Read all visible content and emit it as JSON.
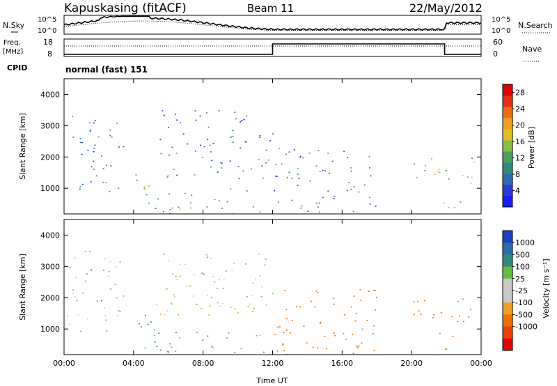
{
  "header": {
    "station": "Kapuskasing (fitACF)",
    "beam": "Beam 11",
    "date": "22/May/2012"
  },
  "noise_panel": {
    "left_label": "N.Sky",
    "right_label": "N.Search",
    "tick_top": "10^5",
    "tick_bottom": "10^0"
  },
  "freq_panel": {
    "left_label_1": "Freq.",
    "left_label_2": "[MHz]",
    "left_tick_top": "18",
    "left_tick_bottom": "8",
    "right_tick_top": "60",
    "right_tick_bottom": "0",
    "right_label": "Nave"
  },
  "cpid": {
    "label": "CPID",
    "value": "normal (fast) 151"
  },
  "colors": {
    "power_scale": [
      "#1a1aff",
      "#2a3ad8",
      "#2a6cb0",
      "#2e8c7a",
      "#4aa060",
      "#88c040",
      "#e0c020",
      "#f0a020",
      "#f06a10",
      "#e83010",
      "#e00000"
    ],
    "velocity_scale": [
      "#e80000",
      "#f04000",
      "#f07000",
      "#f0a020",
      "#c8c8c8",
      "#c8c8c8",
      "#60c040",
      "#2e8c7a",
      "#2a6cb0",
      "#1a40c8"
    ]
  },
  "chart_data": [
    {
      "type": "heatmap",
      "name": "power",
      "x_axis": {
        "label": "",
        "range_hours": [
          0,
          24
        ],
        "ticks": [
          "00:00",
          "04:00",
          "08:00",
          "12:00",
          "16:00",
          "20:00",
          "00:00"
        ]
      },
      "y_axis": {
        "label": "Slant Range [km]",
        "range": [
          180,
          4500
        ],
        "ticks": [
          1000,
          2000,
          3000,
          4000
        ]
      },
      "colorbar": {
        "label": "Power [dB]",
        "ticks": [
          "4",
          "8",
          "12",
          "16",
          "20",
          "24",
          "28"
        ],
        "range": [
          0,
          30
        ]
      },
      "echo_regions": [
        {
          "t0": 0.0,
          "t1": 3.2,
          "r0": 900,
          "r1": 1500,
          "level": 8
        },
        {
          "t0": 0.3,
          "t1": 3.5,
          "r0": 1500,
          "r1": 3500,
          "level": 6
        },
        {
          "t0": 4.0,
          "t1": 5.5,
          "r0": 800,
          "r1": 1500,
          "level": 12
        },
        {
          "t0": 5.2,
          "t1": 12.0,
          "r0": 1300,
          "r1": 2000,
          "level": 8
        },
        {
          "t0": 5.5,
          "t1": 12.0,
          "r0": 2000,
          "r1": 3500,
          "level": 6
        },
        {
          "t0": 4.5,
          "t1": 11.5,
          "r0": 200,
          "r1": 1000,
          "level": 12
        },
        {
          "t0": 12.0,
          "t1": 18.0,
          "r0": 200,
          "r1": 2300,
          "level": 8
        },
        {
          "t0": 20.0,
          "t1": 24.0,
          "r0": 1100,
          "r1": 2000,
          "level": 14
        },
        {
          "t0": 21.5,
          "t1": 22.8,
          "r0": 300,
          "r1": 1000,
          "level": 16
        }
      ]
    },
    {
      "type": "heatmap",
      "name": "velocity",
      "x_axis": {
        "label": "Time UT",
        "range_hours": [
          0,
          24
        ],
        "ticks": [
          "00:00",
          "04:00",
          "08:00",
          "12:00",
          "16:00",
          "20:00",
          "00:00"
        ]
      },
      "y_axis": {
        "label": "Slant Range [km]",
        "range": [
          180,
          4500
        ],
        "ticks": [
          1000,
          2000,
          3000,
          4000
        ]
      },
      "colorbar": {
        "label": "Velocity [m s⁻¹]",
        "ticks": [
          "1000",
          "500",
          "100",
          "25",
          "-25",
          "-100",
          "-500",
          "-1000"
        ]
      },
      "echo_regions": [
        {
          "t0": 0.0,
          "t1": 3.2,
          "r0": 900,
          "r1": 1500,
          "v": 0
        },
        {
          "t0": 0.3,
          "t1": 3.5,
          "r0": 1500,
          "r1": 3500,
          "v": 50
        },
        {
          "t0": 4.0,
          "t1": 5.5,
          "r0": 800,
          "r1": 1500,
          "v": 150
        },
        {
          "t0": 5.2,
          "t1": 12.0,
          "r0": 1300,
          "r1": 2000,
          "v": 0
        },
        {
          "t0": 5.5,
          "t1": 12.0,
          "r0": 2000,
          "r1": 3500,
          "v": 20
        },
        {
          "t0": 4.5,
          "t1": 11.5,
          "r0": 200,
          "r1": 1000,
          "v": 80
        },
        {
          "t0": 12.0,
          "t1": 18.0,
          "r0": 200,
          "r1": 2300,
          "v": -300
        },
        {
          "t0": 20.0,
          "t1": 24.0,
          "r0": 1100,
          "r1": 2000,
          "v": -200
        },
        {
          "t0": 21.5,
          "t1": 22.8,
          "r0": 300,
          "r1": 1000,
          "v": -250
        }
      ]
    }
  ]
}
